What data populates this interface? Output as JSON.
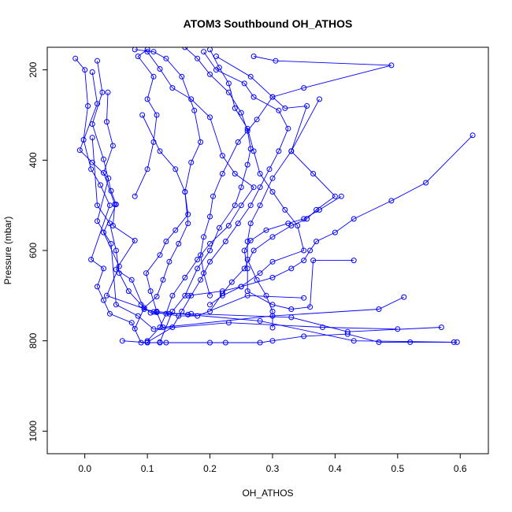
{
  "chart_data": {
    "type": "scatter",
    "title": "ATOM3 Southbound OH_ATHOS",
    "xlabel": "OH_ATHOS",
    "ylabel": "Pressure (mbar)",
    "xlim": [
      -0.06,
      0.645
    ],
    "ylim": [
      1050,
      150
    ],
    "y_inverted": true,
    "x_ticks": [
      0.0,
      0.1,
      0.2,
      0.3,
      0.4,
      0.5,
      0.6
    ],
    "y_ticks": [
      200,
      400,
      600,
      800,
      1000
    ],
    "x_tick_labels": [
      "0.0",
      "0.1",
      "0.2",
      "0.3",
      "0.4",
      "0.5",
      "0.6"
    ],
    "y_tick_labels": [
      "200",
      "400",
      "600",
      "800",
      "1000"
    ],
    "grid": false,
    "legend": "none",
    "marker": "open-circle",
    "color": "#0000ff",
    "series": [
      {
        "points": [
          [
            -0.015,
            175
          ],
          [
            0.0,
            200
          ],
          [
            0.005,
            280
          ],
          [
            -0.002,
            355
          ],
          [
            0.01,
            420
          ],
          [
            0.025,
            455
          ],
          [
            0.04,
            500
          ],
          [
            0.01,
            620
          ],
          [
            0.03,
            640
          ],
          [
            0.02,
            680
          ],
          [
            0.03,
            710
          ],
          [
            0.04,
            740
          ],
          [
            0.075,
            760
          ],
          [
            0.09,
            804
          ],
          [
            0.12,
            804
          ],
          [
            0.225,
            804
          ]
        ]
      },
      {
        "points": [
          [
            0.012,
            205
          ],
          [
            0.02,
            275
          ],
          [
            -0.008,
            378
          ],
          [
            0.012,
            405
          ],
          [
            0.038,
            440
          ],
          [
            0.02,
            535
          ],
          [
            0.042,
            585
          ],
          [
            0.05,
            720
          ],
          [
            0.085,
            745
          ],
          [
            0.11,
            774
          ],
          [
            0.23,
            760
          ],
          [
            0.38,
            770
          ],
          [
            0.5,
            774
          ]
        ]
      },
      {
        "points": [
          [
            0.02,
            180
          ],
          [
            0.028,
            250
          ],
          [
            0.012,
            320
          ],
          [
            0.03,
            398
          ],
          [
            0.042,
            468
          ],
          [
            0.05,
            498
          ],
          [
            0.03,
            560
          ],
          [
            0.055,
            635
          ],
          [
            0.035,
            700
          ],
          [
            0.11,
            736
          ],
          [
            0.15,
            745
          ],
          [
            0.18,
            745
          ],
          [
            0.26,
            700
          ],
          [
            0.35,
            705
          ]
        ]
      },
      {
        "points": [
          [
            0.037,
            250
          ],
          [
            0.035,
            315
          ],
          [
            0.045,
            368
          ],
          [
            0.03,
            428
          ],
          [
            0.048,
            498
          ],
          [
            0.045,
            545
          ],
          [
            0.08,
            578
          ],
          [
            0.05,
            642
          ],
          [
            0.075,
            665
          ],
          [
            0.095,
            730
          ],
          [
            0.115,
            737
          ],
          [
            0.125,
            770
          ],
          [
            0.3,
            745
          ],
          [
            0.47,
            730
          ],
          [
            0.51,
            703
          ]
        ]
      },
      {
        "points": [
          [
            0.012,
            350
          ],
          [
            0.02,
            500
          ],
          [
            0.04,
            540
          ],
          [
            0.05,
            600
          ],
          [
            0.055,
            650
          ],
          [
            0.07,
            690
          ],
          [
            0.09,
            720
          ],
          [
            0.105,
            738
          ],
          [
            0.135,
            740
          ],
          [
            0.17,
            740
          ],
          [
            0.33,
            748
          ],
          [
            0.42,
            780
          ],
          [
            0.57,
            770
          ]
        ]
      },
      {
        "points": [
          [
            0.08,
            480
          ],
          [
            0.1,
            420
          ],
          [
            0.11,
            360
          ],
          [
            0.115,
            300
          ],
          [
            0.1,
            265
          ],
          [
            0.11,
            215
          ],
          [
            0.085,
            170
          ],
          [
            0.1,
            155
          ]
        ]
      },
      {
        "points": [
          [
            0.092,
            300
          ],
          [
            0.12,
            380
          ],
          [
            0.145,
            420
          ],
          [
            0.16,
            470
          ],
          [
            0.165,
            520
          ],
          [
            0.145,
            555
          ],
          [
            0.13,
            580
          ],
          [
            0.12,
            610
          ],
          [
            0.098,
            650
          ],
          [
            0.105,
            690
          ],
          [
            0.115,
            735
          ],
          [
            0.165,
            742
          ],
          [
            0.28,
            756
          ],
          [
            0.43,
            800
          ],
          [
            0.595,
            803
          ]
        ]
      },
      {
        "points": [
          [
            0.1,
            160
          ],
          [
            0.12,
            198
          ],
          [
            0.14,
            240
          ],
          [
            0.17,
            265
          ],
          [
            0.2,
            305
          ],
          [
            0.22,
            390
          ],
          [
            0.24,
            430
          ],
          [
            0.27,
            460
          ],
          [
            0.25,
            500
          ],
          [
            0.23,
            545
          ],
          [
            0.2,
            585
          ],
          [
            0.18,
            620
          ],
          [
            0.16,
            660
          ],
          [
            0.14,
            700
          ],
          [
            0.13,
            740
          ],
          [
            0.12,
            770
          ],
          [
            0.1,
            800
          ]
        ]
      },
      {
        "points": [
          [
            0.08,
            155
          ],
          [
            0.11,
            160
          ],
          [
            0.13,
            175
          ],
          [
            0.155,
            215
          ],
          [
            0.175,
            290
          ],
          [
            0.185,
            360
          ],
          [
            0.17,
            405
          ],
          [
            0.16,
            470
          ],
          [
            0.165,
            540
          ],
          [
            0.15,
            585
          ],
          [
            0.135,
            625
          ],
          [
            0.125,
            665
          ],
          [
            0.115,
            702
          ],
          [
            0.095,
            727
          ],
          [
            0.08,
            773
          ]
        ]
      },
      {
        "points": [
          [
            0.2,
            155
          ],
          [
            0.215,
            195
          ],
          [
            0.23,
            230
          ],
          [
            0.24,
            285
          ],
          [
            0.26,
            330
          ],
          [
            0.27,
            380
          ],
          [
            0.28,
            430
          ],
          [
            0.3,
            470
          ],
          [
            0.32,
            510
          ],
          [
            0.34,
            545
          ],
          [
            0.35,
            600
          ],
          [
            0.3,
            625
          ],
          [
            0.28,
            650
          ],
          [
            0.25,
            680
          ],
          [
            0.22,
            700
          ],
          [
            0.2,
            720
          ]
        ]
      },
      {
        "points": [
          [
            0.16,
            150
          ],
          [
            0.18,
            175
          ],
          [
            0.2,
            210
          ],
          [
            0.23,
            250
          ],
          [
            0.25,
            295
          ],
          [
            0.26,
            335
          ],
          [
            0.265,
            375
          ],
          [
            0.26,
            410
          ],
          [
            0.25,
            460
          ],
          [
            0.24,
            500
          ],
          [
            0.215,
            550
          ],
          [
            0.2,
            600
          ],
          [
            0.18,
            640
          ],
          [
            0.16,
            700
          ],
          [
            0.14,
            735
          ],
          [
            0.12,
            803
          ]
        ]
      },
      {
        "points": [
          [
            0.19,
            160
          ],
          [
            0.21,
            200
          ],
          [
            0.255,
            230
          ],
          [
            0.27,
            260
          ],
          [
            0.31,
            290
          ],
          [
            0.325,
            330
          ],
          [
            0.31,
            380
          ],
          [
            0.295,
            420
          ],
          [
            0.28,
            460
          ],
          [
            0.265,
            500
          ],
          [
            0.245,
            540
          ],
          [
            0.225,
            580
          ],
          [
            0.2,
            625
          ],
          [
            0.185,
            665
          ],
          [
            0.17,
            700
          ],
          [
            0.155,
            735
          ],
          [
            0.14,
            770
          ],
          [
            0.1,
            803
          ]
        ]
      },
      {
        "points": [
          [
            0.21,
            170
          ],
          [
            0.265,
            215
          ],
          [
            0.3,
            260
          ],
          [
            0.32,
            285
          ],
          [
            0.355,
            280
          ],
          [
            0.33,
            380
          ],
          [
            0.365,
            430
          ],
          [
            0.4,
            480
          ],
          [
            0.37,
            510
          ],
          [
            0.355,
            530
          ],
          [
            0.33,
            545
          ],
          [
            0.3,
            570
          ],
          [
            0.27,
            600
          ],
          [
            0.255,
            640
          ],
          [
            0.235,
            670
          ],
          [
            0.22,
            695
          ],
          [
            0.2,
            735
          ]
        ]
      },
      {
        "points": [
          [
            0.27,
            170
          ],
          [
            0.305,
            180
          ],
          [
            0.49,
            190
          ],
          [
            0.35,
            240
          ],
          [
            0.3,
            260
          ],
          [
            0.275,
            310
          ],
          [
            0.245,
            360
          ],
          [
            0.22,
            430
          ],
          [
            0.205,
            480
          ],
          [
            0.2,
            525
          ],
          [
            0.19,
            570
          ],
          [
            0.185,
            610
          ],
          [
            0.19,
            650
          ],
          [
            0.2,
            700
          ]
        ]
      },
      {
        "points": [
          [
            0.375,
            265
          ],
          [
            0.33,
            380
          ],
          [
            0.3,
            440
          ],
          [
            0.28,
            500
          ],
          [
            0.265,
            540
          ],
          [
            0.26,
            580
          ],
          [
            0.26,
            620
          ],
          [
            0.275,
            665
          ],
          [
            0.29,
            700
          ],
          [
            0.3,
            735
          ],
          [
            0.3,
            771
          ]
        ]
      },
      {
        "points": [
          [
            0.62,
            345
          ],
          [
            0.545,
            450
          ],
          [
            0.49,
            490
          ],
          [
            0.43,
            530
          ],
          [
            0.4,
            560
          ],
          [
            0.37,
            580
          ],
          [
            0.36,
            600
          ],
          [
            0.35,
            622
          ],
          [
            0.33,
            640
          ],
          [
            0.3,
            660
          ],
          [
            0.25,
            680
          ],
          [
            0.22,
            690
          ],
          [
            0.165,
            700
          ]
        ]
      },
      {
        "points": [
          [
            0.41,
            480
          ],
          [
            0.375,
            510
          ],
          [
            0.35,
            530
          ],
          [
            0.325,
            540
          ],
          [
            0.29,
            555
          ],
          [
            0.265,
            578
          ],
          [
            0.255,
            600
          ],
          [
            0.26,
            640
          ],
          [
            0.26,
            690
          ],
          [
            0.3,
            720
          ],
          [
            0.33,
            730
          ],
          [
            0.36,
            725
          ],
          [
            0.365,
            622
          ],
          [
            0.43,
            622
          ]
        ]
      },
      {
        "points": [
          [
            0.06,
            800
          ],
          [
            0.1,
            804
          ],
          [
            0.13,
            804
          ],
          [
            0.2,
            804
          ],
          [
            0.28,
            804
          ],
          [
            0.3,
            800
          ],
          [
            0.35,
            790
          ],
          [
            0.42,
            785
          ],
          [
            0.47,
            803
          ],
          [
            0.52,
            803
          ],
          [
            0.59,
            803
          ]
        ]
      }
    ]
  }
}
